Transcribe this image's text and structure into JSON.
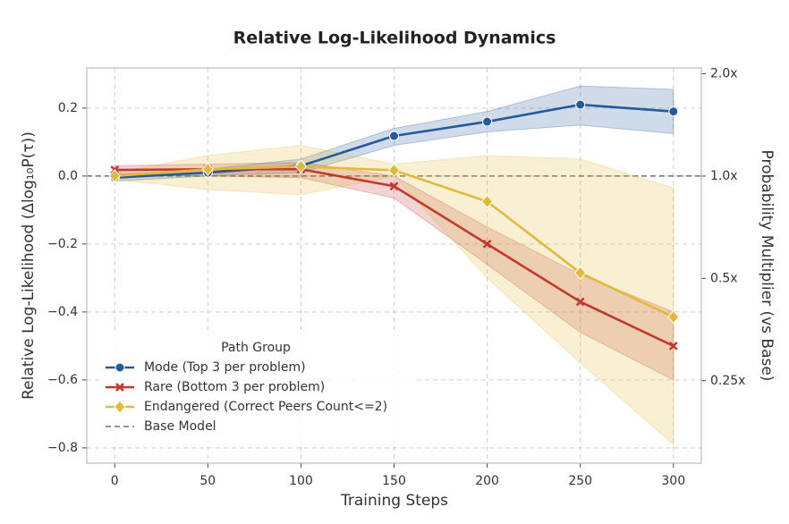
{
  "chart_data": {
    "type": "line",
    "title": "Relative Log-Likelihood Dynamics",
    "x_label": "Training Steps",
    "y_label": "Relative Log-Likelihood (Δlog₁₀P(τ))",
    "y2_label": "Probability Multiplier (vs Base)",
    "x": [
      0,
      50,
      100,
      150,
      200,
      250,
      300
    ],
    "xlim": [
      -15,
      315
    ],
    "xticks": [
      0,
      50,
      100,
      150,
      200,
      250,
      300
    ],
    "ylim": [
      -0.845,
      0.318
    ],
    "yticks": [
      {
        "value": -0.8,
        "label": "−0.8"
      },
      {
        "value": -0.6,
        "label": "−0.6"
      },
      {
        "value": -0.4,
        "label": "−0.4"
      },
      {
        "value": -0.2,
        "label": "−0.2"
      },
      {
        "value": 0,
        "label": "0.0"
      },
      {
        "value": 0.2,
        "label": "0.2"
      }
    ],
    "y2lim": [
      0.143,
      2.08
    ],
    "y2_scale": "log",
    "y2ticks": [
      {
        "value": 2,
        "label": "2.0x"
      },
      {
        "value": 1,
        "label": "1.0x"
      },
      {
        "value": 0.5,
        "label": "0.5x"
      },
      {
        "value": 0.25,
        "label": "0.25x"
      }
    ],
    "grid": true,
    "legend_title": "Path Group",
    "legend": "lower left",
    "baseline": {
      "name": "Base Model",
      "value": 0,
      "color": "#555555"
    },
    "series": [
      {
        "name": "Mode (Top 3 per problem)",
        "color": "#245a9b",
        "marker": "circle",
        "values": [
          -0.005,
          0.01,
          0.03,
          0.118,
          0.16,
          0.21,
          0.19
        ],
        "lower": [
          -0.015,
          0.0,
          0.01,
          0.09,
          0.13,
          0.15,
          0.125
        ],
        "upper": [
          0.005,
          0.02,
          0.05,
          0.14,
          0.19,
          0.265,
          0.255
        ]
      },
      {
        "name": "Rare (Bottom 3 per problem)",
        "color": "#c1392f",
        "marker": "x",
        "values": [
          0.018,
          0.02,
          0.02,
          -0.03,
          -0.2,
          -0.37,
          -0.5
        ],
        "lower": [
          0.005,
          0.0,
          -0.005,
          -0.065,
          -0.26,
          -0.46,
          -0.6
        ],
        "upper": [
          0.03,
          0.035,
          0.04,
          0.0,
          -0.15,
          -0.29,
          -0.4
        ]
      },
      {
        "name": "Endangered (Correct Peers Count<=2)",
        "color": "#e2b93b",
        "marker": "diamond",
        "values": [
          0.0,
          0.02,
          0.028,
          0.017,
          -0.075,
          -0.285,
          -0.415
        ],
        "lower": [
          -0.01,
          -0.04,
          -0.055,
          0.0,
          -0.3,
          -0.55,
          -0.79
        ],
        "upper": [
          0.01,
          0.06,
          0.09,
          0.035,
          0.06,
          0.05,
          -0.035
        ]
      }
    ]
  }
}
